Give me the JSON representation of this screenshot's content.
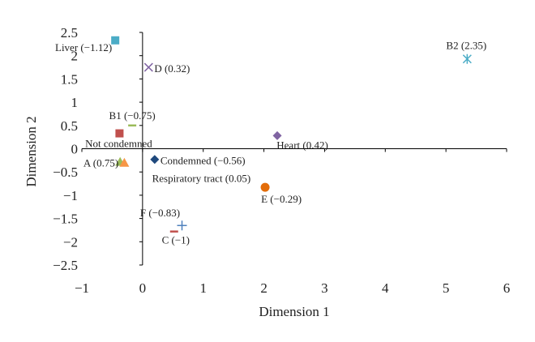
{
  "chart_data": {
    "type": "scatter",
    "xlabel": "Dimension 1",
    "ylabel": "Dimension 2",
    "xlim": [
      -1,
      6
    ],
    "ylim": [
      -2.5,
      2.5
    ],
    "xticks": [
      "−1",
      "0",
      "1",
      "2",
      "3",
      "4",
      "5",
      "6"
    ],
    "yticks": [
      "2.5",
      "2",
      "1.5",
      "1",
      "0.5",
      "0",
      "−0.5",
      "−1",
      "−1.5",
      "−2",
      "−2.5"
    ],
    "grid": false,
    "points": [
      {
        "label": "Liver (−1.12)",
        "x": -0.45,
        "y": 2.33,
        "marker": "square",
        "color": "#4BACC6"
      },
      {
        "label": "D (0.32)",
        "x": 0.1,
        "y": 1.75,
        "marker": "x",
        "color": "#8064A2"
      },
      {
        "label": "B2 (2.35)",
        "x": 5.35,
        "y": 1.93,
        "marker": "asterisk",
        "color": "#4BACC6"
      },
      {
        "label": "B1 (−0.75)",
        "x": -0.17,
        "y": 0.5,
        "marker": "dash",
        "color": "#9BBB59"
      },
      {
        "label": "Not condemned",
        "x": -0.38,
        "y": 0.33,
        "marker": "square",
        "color": "#C0504D"
      },
      {
        "label": "Heart (0.42)",
        "x": 2.22,
        "y": 0.28,
        "marker": "diamond",
        "color": "#8064A2"
      },
      {
        "label": "A (0.75)",
        "x": -0.37,
        "y": -0.28,
        "marker": "triangle",
        "color": "#9BBB59"
      },
      {
        "label": "Respiratory tract (0.05)",
        "x": -0.3,
        "y": -0.3,
        "marker": "triangle",
        "color": "#F79646"
      },
      {
        "label": "Condemned (−0.56)",
        "x": 0.2,
        "y": -0.23,
        "marker": "diamond",
        "color": "#1F497D"
      },
      {
        "label": "E (−0.29)",
        "x": 2.02,
        "y": -0.83,
        "marker": "circle",
        "color": "#E36C09"
      },
      {
        "label": "F (−0.83)",
        "x": 0.65,
        "y": -1.65,
        "marker": "plus",
        "color": "#4F81BD"
      },
      {
        "label": "C (−1)",
        "x": 0.52,
        "y": -1.78,
        "marker": "dash",
        "color": "#C0504D"
      }
    ]
  }
}
